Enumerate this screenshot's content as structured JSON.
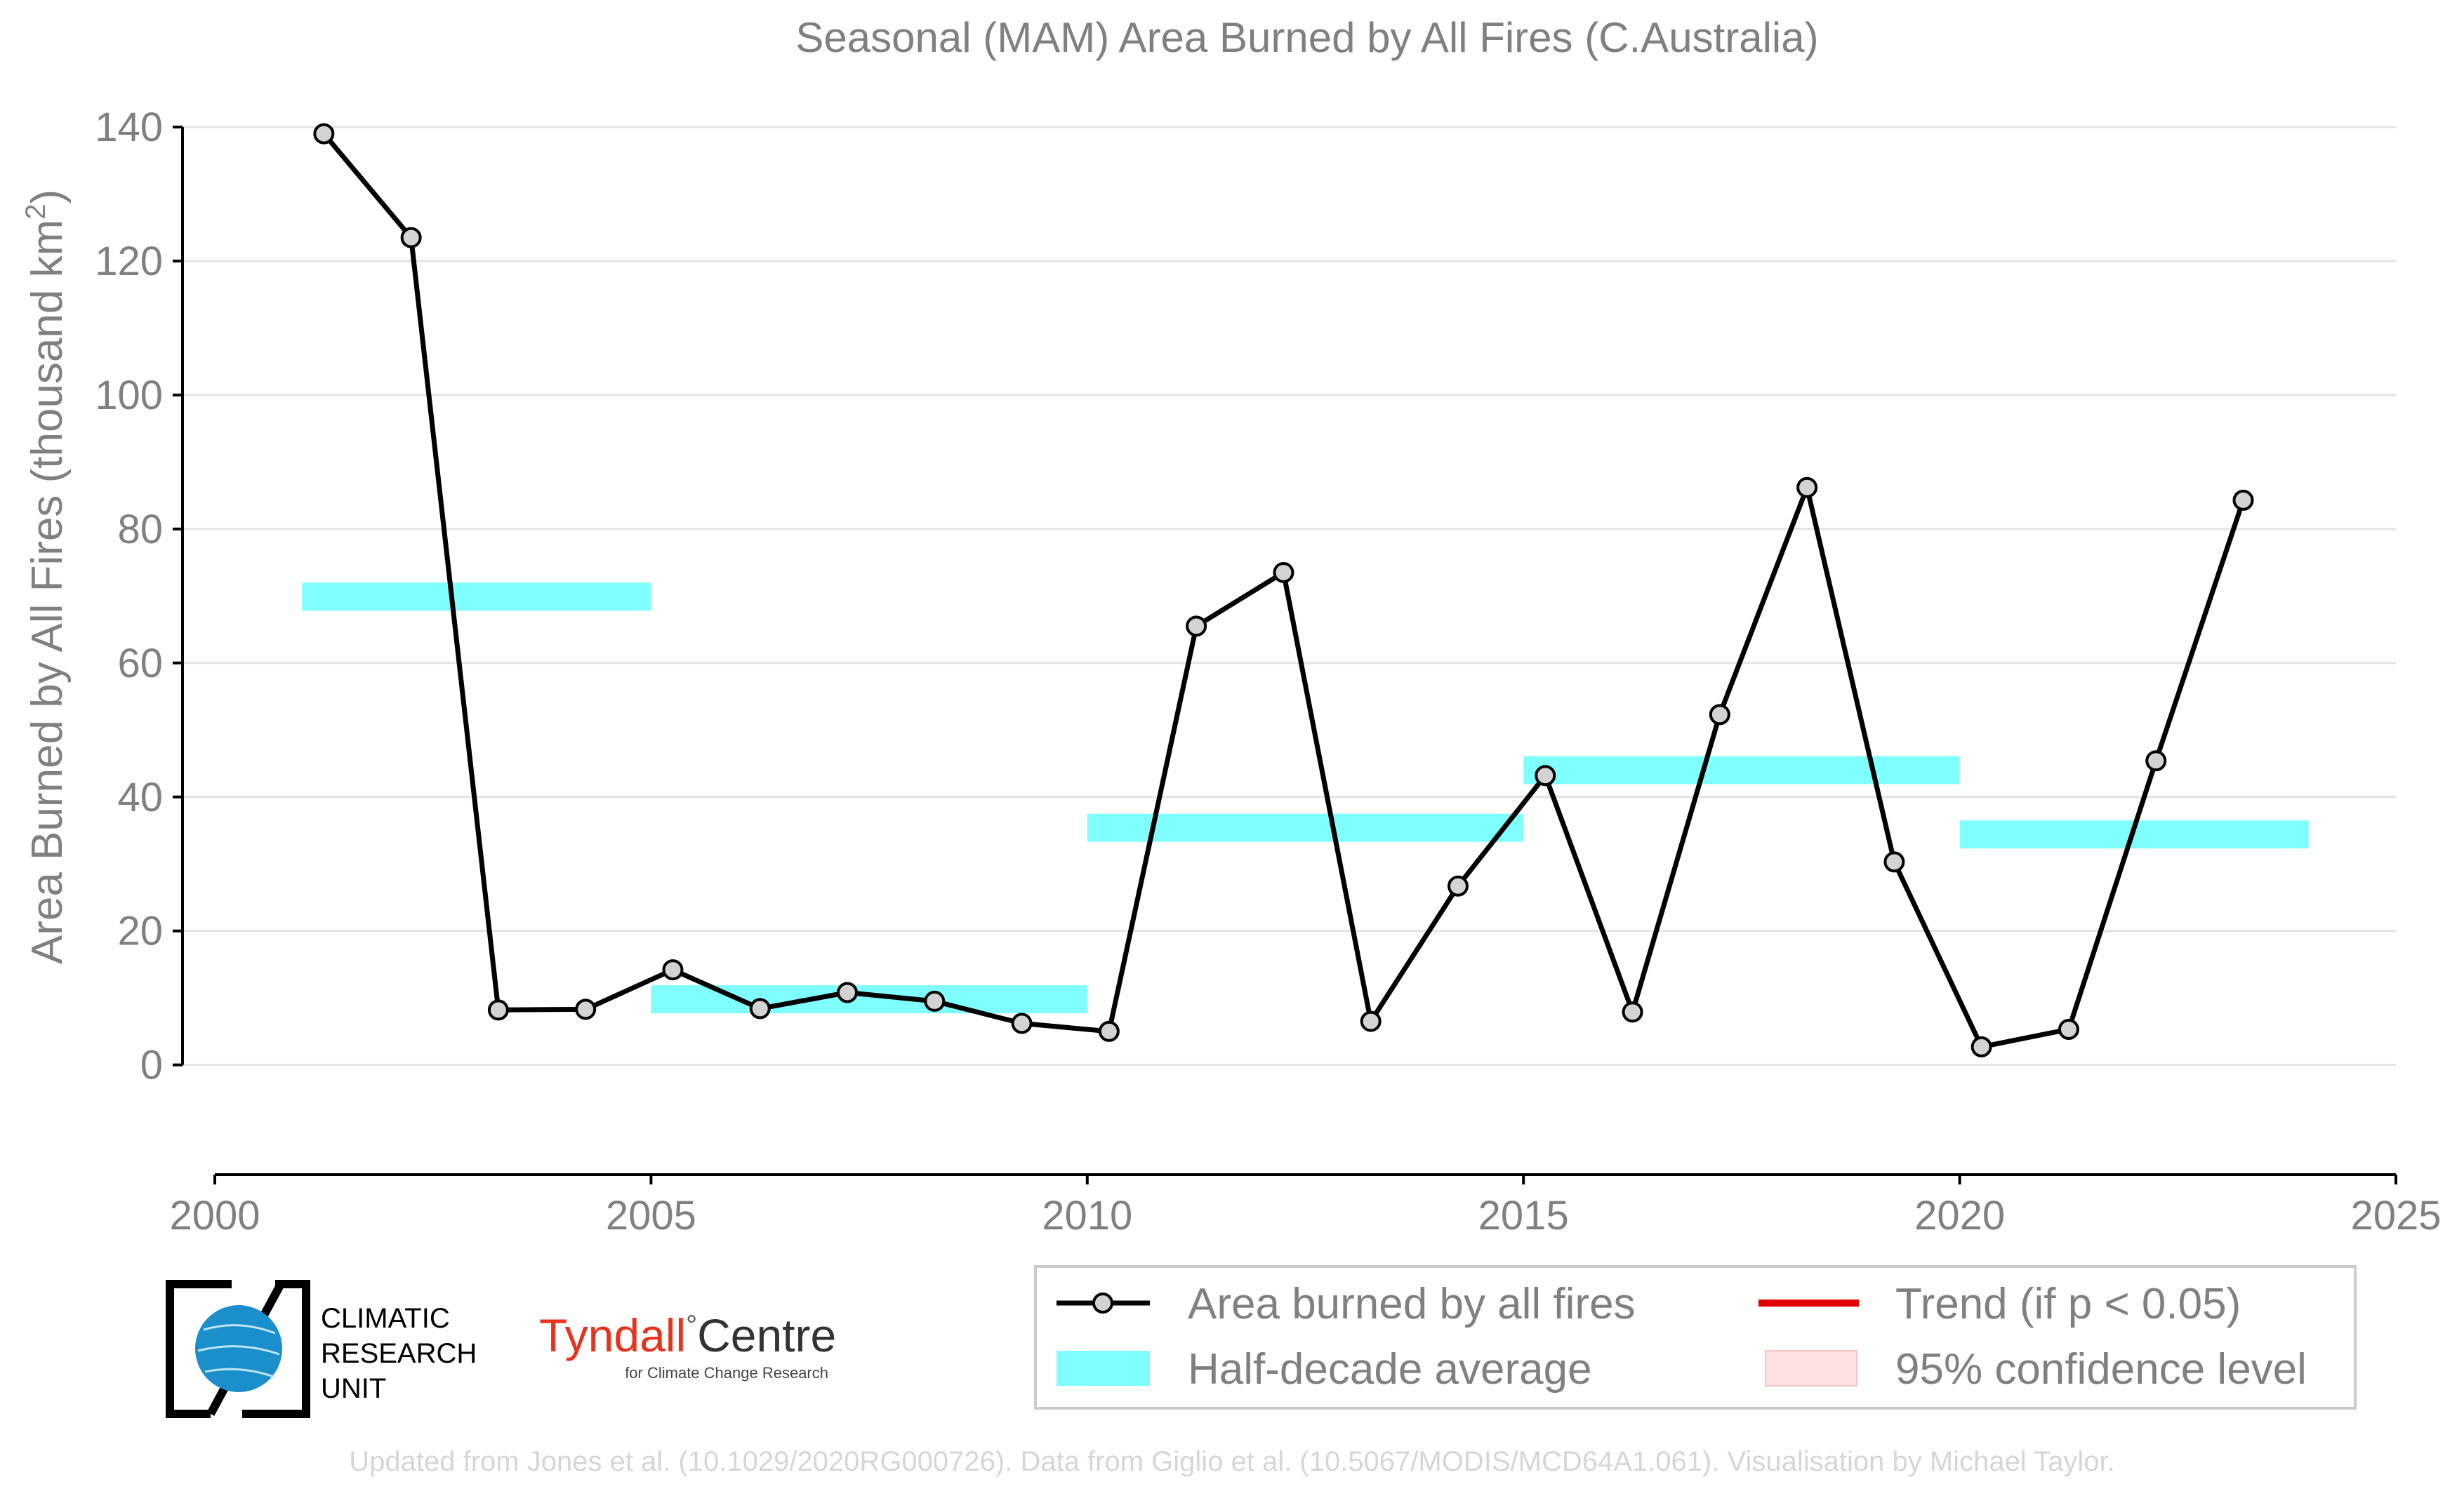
{
  "chart_data": {
    "type": "line",
    "title": "Seasonal (MAM) Area Burned by All Fires (C.Australia)",
    "xlabel": "",
    "ylabel": "Area Burned by All Fires (thousand km",
    "ylabel_sup": "2",
    "ylabel_end": ")",
    "xlim": [
      2000,
      2025
    ],
    "ylim": [
      -8,
      142
    ],
    "xticks": [
      2000,
      2005,
      2010,
      2015,
      2020,
      2025
    ],
    "yticks": [
      0,
      20,
      40,
      60,
      80,
      100,
      120,
      140
    ],
    "grid": true,
    "legend_position": "bottom-right",
    "series": [
      {
        "name": "Area burned by all fires",
        "color": "#000000",
        "marker_fill": "#d3d3d3",
        "x": [
          2001.25,
          2002.25,
          2003.25,
          2004.25,
          2005.25,
          2006.25,
          2007.25,
          2008.25,
          2009.25,
          2010.25,
          2011.25,
          2012.25,
          2013.25,
          2014.25,
          2015.25,
          2016.25,
          2017.25,
          2018.25,
          2019.25,
          2020.25,
          2021.25,
          2022.25,
          2023.25
        ],
        "values": [
          139,
          123.5,
          8.2,
          8.3,
          14.2,
          8.4,
          10.8,
          9.5,
          6.2,
          5.0,
          65.5,
          73.5,
          6.5,
          26.7,
          43.2,
          7.9,
          52.3,
          86.2,
          30.3,
          2.7,
          5.3,
          45.4,
          84.3
        ]
      },
      {
        "name": "Half-decade average",
        "color": "#80ffff",
        "segments": [
          {
            "x0": 2001,
            "x1": 2005,
            "value": 69.9
          },
          {
            "x0": 2005,
            "x1": 2010,
            "value": 9.8
          },
          {
            "x0": 2010,
            "x1": 2015,
            "value": 35.4
          },
          {
            "x0": 2015,
            "x1": 2020,
            "value": 44.0
          },
          {
            "x0": 2020,
            "x1": 2024,
            "value": 34.4
          }
        ]
      },
      {
        "name": "Trend (if p < 0.05)",
        "color": "#e00000",
        "values": []
      },
      {
        "name": "95% confidence level",
        "color": "#ffe0e0",
        "values": []
      }
    ]
  },
  "logos": {
    "cru_text": [
      "CLIMATIC",
      "RESEARCH",
      "UNIT"
    ],
    "tyndall_name": "Tyndall",
    "tyndall_deg": "°",
    "tyndall_centre": "Centre",
    "tyndall_sub": "for Climate Change Research",
    "tyndall_color": "#e8321e",
    "cru_globe_color": "#1a8fcb"
  },
  "footer": "Updated from Jones et al. (10.1029/2020RG000726). Data from Giglio et al. (10.5067/MODIS/MCD64A1.061). Visualisation by Michael Taylor."
}
